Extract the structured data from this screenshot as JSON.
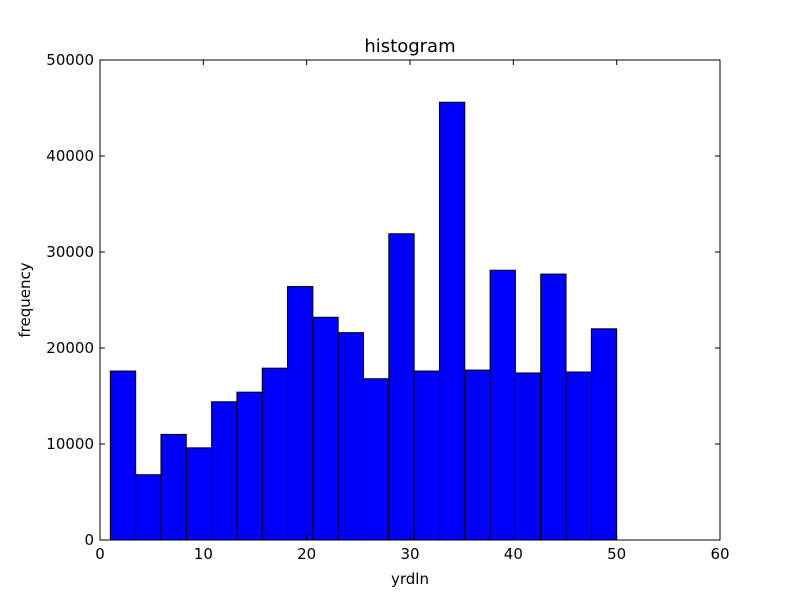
{
  "chart_data": {
    "type": "bar",
    "title": "histogram",
    "xlabel": "yrdln",
    "ylabel": "frequency",
    "xlim": [
      0,
      60
    ],
    "ylim": [
      0,
      50000
    ],
    "xticks": [
      0,
      10,
      20,
      30,
      40,
      50,
      60
    ],
    "yticks": [
      0,
      10000,
      20000,
      30000,
      40000,
      50000
    ],
    "grid": false,
    "bar_color": "#0000ff",
    "edge_color": "#000000",
    "bins": [
      {
        "x0": 1.0,
        "x1": 3.45,
        "value": 17600
      },
      {
        "x0": 3.45,
        "x1": 5.9,
        "value": 6800
      },
      {
        "x0": 5.9,
        "x1": 8.35,
        "value": 11000
      },
      {
        "x0": 8.35,
        "x1": 10.8,
        "value": 9600
      },
      {
        "x0": 10.8,
        "x1": 13.25,
        "value": 14400
      },
      {
        "x0": 13.25,
        "x1": 15.7,
        "value": 15400
      },
      {
        "x0": 15.7,
        "x1": 18.15,
        "value": 17900
      },
      {
        "x0": 18.15,
        "x1": 20.6,
        "value": 26400
      },
      {
        "x0": 20.6,
        "x1": 23.05,
        "value": 23200
      },
      {
        "x0": 23.05,
        "x1": 25.5,
        "value": 21600
      },
      {
        "x0": 25.5,
        "x1": 27.95,
        "value": 16800
      },
      {
        "x0": 27.95,
        "x1": 30.4,
        "value": 31900
      },
      {
        "x0": 30.4,
        "x1": 32.85,
        "value": 17600
      },
      {
        "x0": 32.85,
        "x1": 35.3,
        "value": 45600
      },
      {
        "x0": 35.3,
        "x1": 37.75,
        "value": 17700
      },
      {
        "x0": 37.75,
        "x1": 40.2,
        "value": 28100
      },
      {
        "x0": 40.2,
        "x1": 42.65,
        "value": 17400
      },
      {
        "x0": 42.65,
        "x1": 45.1,
        "value": 27700
      },
      {
        "x0": 45.1,
        "x1": 47.55,
        "value": 17500
      },
      {
        "x0": 47.55,
        "x1": 50.0,
        "value": 22000
      }
    ]
  }
}
